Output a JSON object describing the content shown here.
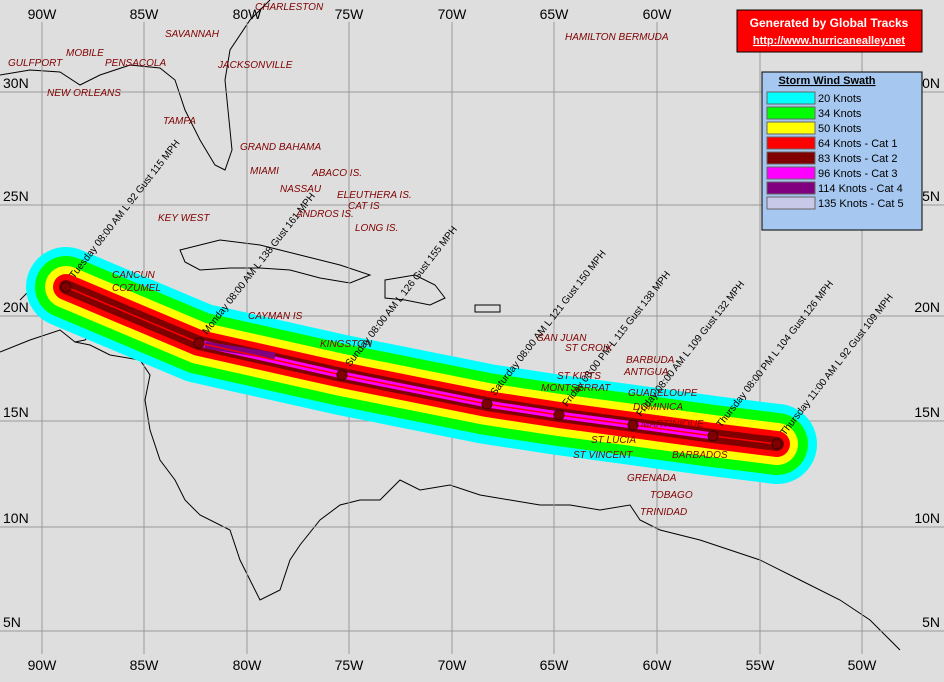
{
  "header": {
    "title": "Generated by Global Tracks",
    "url": "http://www.hurricanealley.net"
  },
  "legend": {
    "title": "Storm Wind Swath",
    "entries": [
      {
        "label": "20 Knots",
        "color": "#00ffff"
      },
      {
        "label": "34 Knots",
        "color": "#00ff00"
      },
      {
        "label": "50 Knots",
        "color": "#ffff00"
      },
      {
        "label": "64 Knots - Cat 1",
        "color": "#ff0000"
      },
      {
        "label": "83 Knots - Cat 2",
        "color": "#800000"
      },
      {
        "label": "96 Knots - Cat 3",
        "color": "#ff00ff"
      },
      {
        "label": "114 Knots - Cat 4",
        "color": "#800080"
      },
      {
        "label": "135 Knots - Cat 5",
        "color": "#c8c8e8"
      }
    ]
  },
  "longitudes": [
    "90W",
    "85W",
    "80W",
    "75W",
    "70W",
    "65W",
    "60W",
    "55W",
    "50W"
  ],
  "latitudes": [
    "30N",
    "25N",
    "20N",
    "15N",
    "10N",
    "5N"
  ],
  "places": [
    "CHARLESTON",
    "SAVANNAH",
    "MOBILE",
    "PENSACOLA",
    "JACKSONVILLE",
    "GULFPORT",
    "NEW ORLEANS",
    "TAMPA",
    "GRAND BAHAMA",
    "MIAMI",
    "ABACO IS.",
    "NASSAU",
    "ELEUTHERA IS.",
    "CAT IS",
    "ANDROS IS.",
    "KEY WEST",
    "LONG IS.",
    "HAMILTON BERMUDA",
    "CANCUN",
    "COZUMEL",
    "CAYMAN IS",
    "KINGSTON",
    "SAN JUAN",
    "ST CROIX",
    "BARBUDA",
    "ST KITTS",
    "ANTIGUA",
    "MONTSERRAT",
    "GUADELOUPE",
    "DOMINICA",
    "MARTINIQUE",
    "ST LUCIA",
    "ST VINCENT",
    "BARBADOS",
    "GRENADA",
    "TOBAGO",
    "TRINIDAD"
  ],
  "forecast_points": [
    "Tuesday 08:00 AM L 92 Gust 115 MPH",
    "Monday 08:00 AM L 138 Gust 161 MPH",
    "Sunday 08:00 AM L 126 Gust 155 MPH",
    "Saturday 08:00 AM L 121 Gust 150 MPH",
    "Friday 08:00 PM L 115 Gust 138 MPH",
    "Friday 08:00 AM L 109 Gust 132 MPH",
    "Thursday 08:00 PM L 104 Gust 126 MPH",
    "Thursday 11:00 AM L 92 Gust 109 MPH"
  ]
}
